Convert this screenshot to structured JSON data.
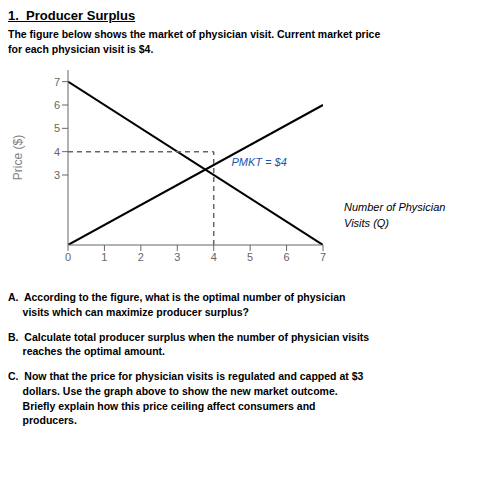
{
  "chart_data": {
    "type": "line",
    "title": "1.  Producer Surplus",
    "subtitle": "The figure below shows the market of physician visit. Current market price\nfor each physician visit is $4.",
    "ylabel": "Price ($)",
    "xlabel": "Number of Physician\nVisits (Q)",
    "series": [
      {
        "x": [
          0,
          7
        ],
        "values": [
          7,
          0
        ],
        "color": "#000000",
        "line_style": "solid"
      },
      {
        "x": [
          0,
          7
        ],
        "values": [
          0,
          6
        ],
        "color": "#000000",
        "line_style": "solid"
      },
      {
        "x": [
          0,
          4
        ],
        "values": [
          4,
          4
        ],
        "color": "#666666",
        "line_style": "dashed"
      },
      {
        "x": [
          4,
          4
        ],
        "values": [
          0,
          4
        ],
        "color": "#666666",
        "line_style": "dashed"
      }
    ],
    "annotations": [
      {
        "text": "PMKT = $4",
        "x": 4.35,
        "y": 3.55,
        "color": "#2255aa"
      }
    ],
    "xlim": [
      0,
      7
    ],
    "ylim": [
      0,
      7.5
    ],
    "xticks": [
      0,
      1,
      2,
      3,
      4,
      5,
      6,
      7
    ],
    "yticks": [
      3,
      4,
      5,
      6,
      7
    ],
    "grid": false,
    "questions": [
      "A.  According to the figure, what is the optimal number of physician\n     visits which can maximize producer surplus?",
      "B.  Calculate total producer surplus when the number of physician visits\n     reaches the optimal amount.",
      "C.  Now that the price for physician visits is regulated and capped at $3\n     dollars. Use the graph above to show the new market outcome.\n     Briefly explain how this price ceiling affect consumers and\n     producers."
    ]
  }
}
